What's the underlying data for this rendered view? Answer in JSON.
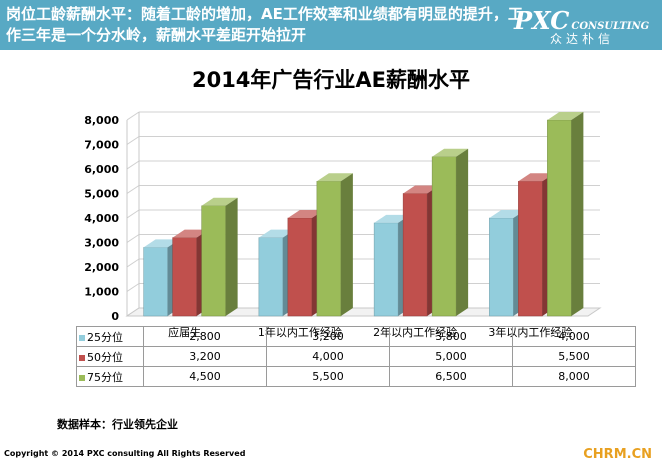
{
  "header": {
    "title": "岗位工龄薪酬水平：随着工龄的增加，AE工作效率和业绩都有明显的提升，工作三年是一个分水岭，薪酬水平差距开始拉开",
    "logo_pxc": "PXC",
    "logo_consulting": "CONSULTING",
    "logo_cn": "众达朴信"
  },
  "chart_data": {
    "type": "bar",
    "title": "2014年广告行业AE薪酬水平",
    "categories": [
      "应届生",
      "1年以内工作经验",
      "2年以内工作经验",
      "3年以内工作经验"
    ],
    "series": [
      {
        "name": "25分位",
        "color": "#92cddc",
        "labels": [
          "2,800",
          "3,200",
          "3,800",
          "4,000"
        ],
        "values": [
          2800,
          3200,
          3800,
          4000
        ]
      },
      {
        "name": "50分位",
        "color": "#c0504d",
        "labels": [
          "3,200",
          "4,000",
          "5,000",
          "5,500"
        ],
        "values": [
          3200,
          4000,
          5000,
          5500
        ]
      },
      {
        "name": "75分位",
        "color": "#9bbb59",
        "labels": [
          "4,500",
          "5,500",
          "6,500",
          "8,000"
        ],
        "values": [
          4500,
          5500,
          6500,
          8000
        ]
      }
    ],
    "yticks": [
      "8,000",
      "7,000",
      "6,000",
      "5,000",
      "4,000",
      "3,000",
      "2,000",
      "1,000",
      "0"
    ],
    "ylim": [
      0,
      8000
    ],
    "grid": true,
    "legend": "data-table"
  },
  "footnote": "数据样本：行业领先企业",
  "copyright": "Copyright © 2014  PXC consulting All Rights Reserved",
  "watermark": "CHRM.CN"
}
